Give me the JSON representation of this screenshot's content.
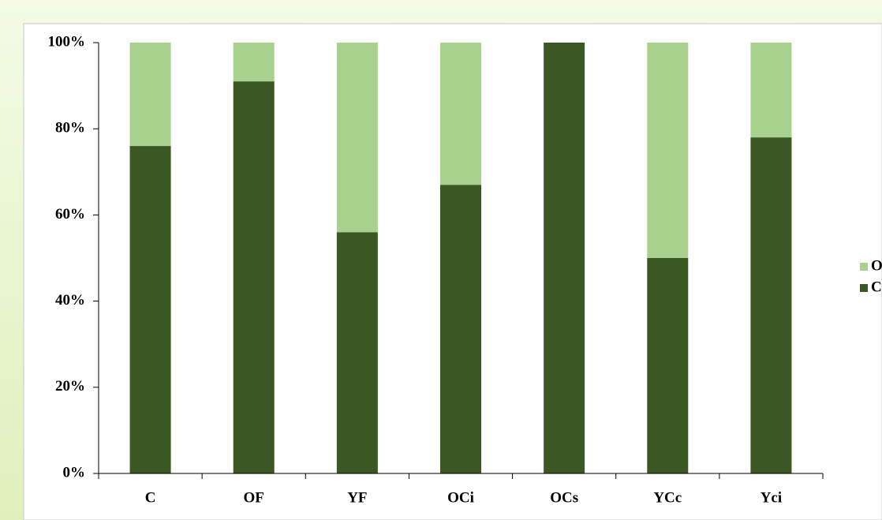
{
  "chart_data": {
    "type": "stacked_bar",
    "categories": [
      "C",
      "OF",
      "YF",
      "OCi",
      "OCs",
      "YCc",
      "Yci"
    ],
    "series": [
      {
        "name": "C",
        "color": "#3b5723",
        "values": [
          76,
          91,
          56,
          67,
          100,
          50,
          78
        ]
      },
      {
        "name": "O",
        "color": "#a9d18e",
        "values": [
          24,
          9,
          44,
          33,
          0,
          50,
          22
        ]
      }
    ],
    "ylim": [
      0,
      100
    ],
    "yticks": [
      {
        "value": 0,
        "label": "0%"
      },
      {
        "value": 20,
        "label": "20%"
      },
      {
        "value": 40,
        "label": "40%"
      },
      {
        "value": 60,
        "label": "60%"
      },
      {
        "value": 80,
        "label": "80%"
      },
      {
        "value": 100,
        "label": "100%"
      }
    ],
    "legend": "right"
  }
}
